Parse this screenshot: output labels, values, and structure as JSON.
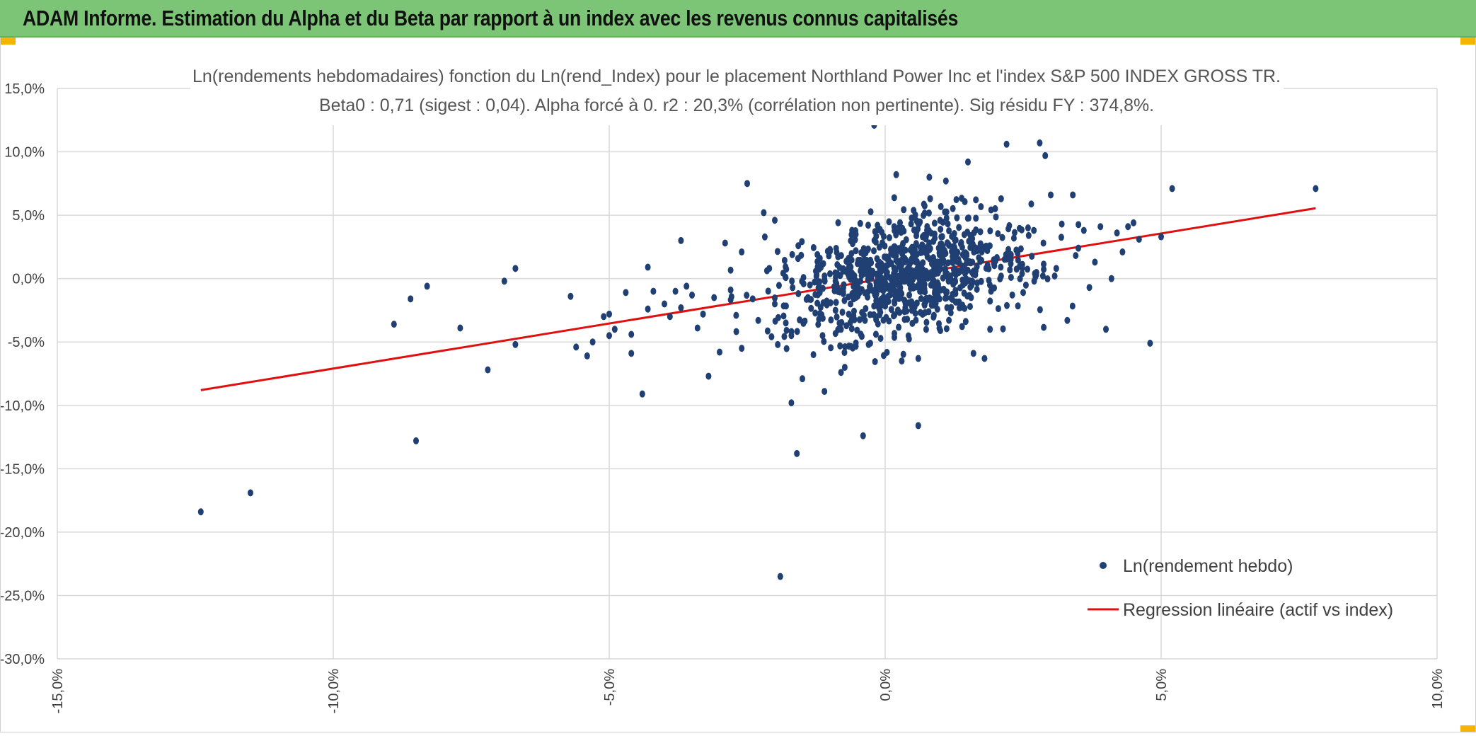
{
  "banner": {
    "title": "ADAM Informe. Estimation du Alpha et du Beta par rapport à un index avec les revenus connus capitalisés"
  },
  "colors": {
    "banner_bg": "#7cc576",
    "points": "#203f73",
    "regression": "#e01010",
    "grid": "#d9d9d9",
    "accent": "#f5b400"
  },
  "chart_data": {
    "type": "scatter",
    "title": "Ln(rendements hebdomadaires) fonction du Ln(rend_Index) pour le placement Northland Power Inc et l'index S&P 500 INDEX GROSS TR.",
    "subtitle": "Beta0 : 0,71 (sigest : 0,04). Alpha forcé à 0. r2 : 20,3% (corrélation non pertinente). Sig résidu FY : 374,8%.",
    "xlim": [
      -15,
      10
    ],
    "ylim": [
      -30,
      15
    ],
    "x_ticks": [
      "-15,0%",
      "-10,0%",
      "-5,0%",
      "0,0%",
      "5,0%",
      "10,0%"
    ],
    "x_tick_values": [
      -15,
      -10,
      -5,
      0,
      5,
      10
    ],
    "y_ticks": [
      "15,0%",
      "10,0%",
      "5,0%",
      "0,0%",
      "-5,0%",
      "-10,0%",
      "-15,0%",
      "-20,0%",
      "-25,0%",
      "-30,0%"
    ],
    "y_tick_values": [
      15,
      10,
      5,
      0,
      -5,
      -10,
      -15,
      -20,
      -25,
      -30
    ],
    "legend": [
      {
        "label": "Ln(rendement hebdo)",
        "kind": "marker"
      },
      {
        "label": "Regression linéaire (actif vs index)",
        "kind": "line"
      }
    ],
    "legend_position": "bottom-right",
    "regression": {
      "beta": 0.71,
      "alpha": 0,
      "x": [
        -12.4,
        7.8
      ],
      "y": [
        -8.8,
        5.55
      ]
    },
    "series": [
      {
        "name": "Ln(rendement hebdo)",
        "points": [
          [
            -12.4,
            -18.4
          ],
          [
            -11.5,
            -16.9
          ],
          [
            -8.9,
            -3.6
          ],
          [
            -8.6,
            -1.6
          ],
          [
            -8.5,
            -12.8
          ],
          [
            -8.3,
            -0.6
          ],
          [
            -7.7,
            -3.9
          ],
          [
            -7.2,
            -7.2
          ],
          [
            -6.9,
            -0.2
          ],
          [
            -6.7,
            0.8
          ],
          [
            -6.7,
            -5.2
          ],
          [
            -5.7,
            -1.4
          ],
          [
            -5.6,
            -5.4
          ],
          [
            -5.4,
            -6.1
          ],
          [
            -5.3,
            -5.0
          ],
          [
            -5.1,
            -3.0
          ],
          [
            -5.0,
            -4.5
          ],
          [
            -5.0,
            -2.8
          ],
          [
            -4.9,
            -4.0
          ],
          [
            -4.7,
            -1.1
          ],
          [
            -4.6,
            -5.9
          ],
          [
            -4.6,
            -4.4
          ],
          [
            -4.4,
            -9.1
          ],
          [
            -4.3,
            -2.4
          ],
          [
            -4.3,
            0.9
          ],
          [
            -4.2,
            -1.0
          ],
          [
            -4.0,
            -2.0
          ],
          [
            -3.9,
            -3.0
          ],
          [
            -3.8,
            -1.0
          ],
          [
            -3.7,
            -2.3
          ],
          [
            -3.7,
            3.0
          ],
          [
            -3.6,
            -0.6
          ],
          [
            -3.5,
            -1.3
          ],
          [
            -3.4,
            -3.9
          ],
          [
            -3.3,
            -2.8
          ],
          [
            -3.2,
            -7.7
          ],
          [
            -3.1,
            -1.5
          ],
          [
            -3.0,
            -5.8
          ],
          [
            -2.9,
            2.8
          ],
          [
            -2.8,
            -0.9
          ],
          [
            -2.7,
            -2.9
          ],
          [
            -2.6,
            -5.5
          ],
          [
            -2.6,
            2.1
          ],
          [
            -2.5,
            7.5
          ],
          [
            -2.4,
            -1.6
          ],
          [
            -2.3,
            -3.3
          ],
          [
            -2.2,
            5.2
          ],
          [
            -2.1,
            0.8
          ],
          [
            -2.0,
            -2.0
          ],
          [
            -2.0,
            4.6
          ],
          [
            -1.9,
            -23.5
          ],
          [
            -1.8,
            -3.5
          ],
          [
            -1.7,
            -9.8
          ],
          [
            -1.7,
            -4.5
          ],
          [
            -1.6,
            -13.8
          ],
          [
            -1.5,
            -7.9
          ],
          [
            -1.4,
            -1.5
          ],
          [
            -1.3,
            -6.0
          ],
          [
            -1.2,
            -3.2
          ],
          [
            -1.2,
            -0.4
          ],
          [
            -1.1,
            -8.9
          ],
          [
            -1.0,
            2.3
          ],
          [
            -0.9,
            -2.5
          ],
          [
            -0.8,
            -7.4
          ],
          [
            -0.8,
            -4.0
          ],
          [
            -0.6,
            -1.3
          ],
          [
            -0.4,
            -12.4
          ],
          [
            -0.3,
            -5.2
          ],
          [
            -0.2,
            12.1
          ],
          [
            -0.1,
            -2.0
          ],
          [
            0.2,
            8.2
          ],
          [
            0.3,
            -6.5
          ],
          [
            0.4,
            -3.2
          ],
          [
            0.5,
            2.0
          ],
          [
            0.6,
            -11.6
          ],
          [
            0.6,
            -6.3
          ],
          [
            0.7,
            3.4
          ],
          [
            0.8,
            8.0
          ],
          [
            0.9,
            -1.0
          ],
          [
            1.0,
            -4.1
          ],
          [
            1.1,
            7.7
          ],
          [
            1.3,
            4.8
          ],
          [
            1.4,
            -2.1
          ],
          [
            1.5,
            9.2
          ],
          [
            1.6,
            -5.9
          ],
          [
            1.8,
            -6.3
          ],
          [
            1.9,
            -4.0
          ],
          [
            2.0,
            1.4
          ],
          [
            2.1,
            6.3
          ],
          [
            2.2,
            10.6
          ],
          [
            2.4,
            2.0
          ],
          [
            2.5,
            -1.1
          ],
          [
            2.6,
            3.4
          ],
          [
            2.7,
            -0.2
          ],
          [
            2.8,
            10.7
          ],
          [
            2.9,
            9.7
          ],
          [
            3.0,
            6.6
          ],
          [
            3.1,
            0.8
          ],
          [
            3.2,
            4.3
          ],
          [
            3.3,
            -3.3
          ],
          [
            3.4,
            6.6
          ],
          [
            3.5,
            2.4
          ],
          [
            3.6,
            3.8
          ],
          [
            3.7,
            -0.7
          ],
          [
            3.8,
            1.3
          ],
          [
            3.9,
            4.1
          ],
          [
            4.0,
            -4.0
          ],
          [
            4.1,
            0.0
          ],
          [
            4.2,
            3.6
          ],
          [
            4.3,
            2.1
          ],
          [
            4.4,
            4.1
          ],
          [
            4.5,
            4.4
          ],
          [
            4.6,
            3.1
          ],
          [
            4.8,
            -5.1
          ],
          [
            5.0,
            3.3
          ],
          [
            5.2,
            7.1
          ],
          [
            7.8,
            7.1
          ]
        ]
      }
    ],
    "cluster": {
      "count": 900,
      "beta": 0.71,
      "x_mean": 0.4,
      "x_sd": 1.1,
      "resid_sd": 2.3
    }
  }
}
